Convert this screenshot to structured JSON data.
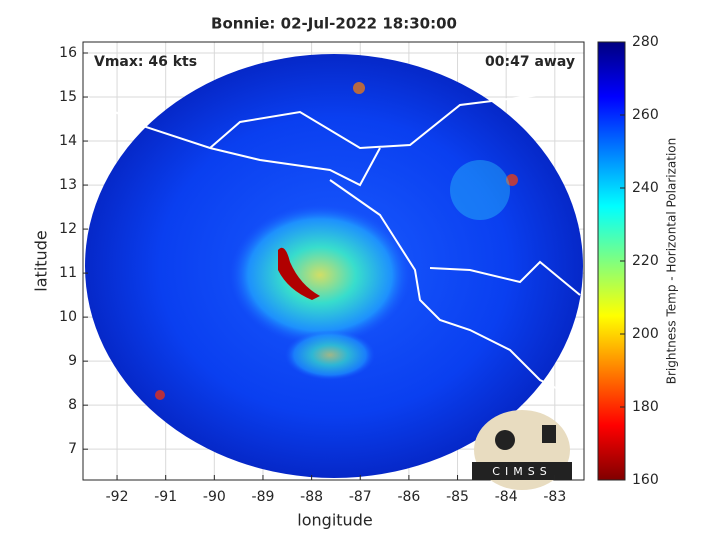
{
  "chart_data": {
    "type": "image",
    "title": "Bonnie: 02-Jul-2022 18:30:00",
    "xlabel": "longitude",
    "ylabel": "latitude",
    "xlim": [
      -92.7,
      -82.4
    ],
    "ylim": [
      6.3,
      16.25
    ],
    "xticks": [
      -92,
      -91,
      -90,
      -89,
      -88,
      -87,
      -86,
      -85,
      -84,
      -83
    ],
    "yticks": [
      7,
      8,
      9,
      10,
      11,
      12,
      13,
      14,
      15,
      16
    ],
    "grid": true,
    "annotations": [
      "Vmax: 46 kts",
      "00:47 away"
    ],
    "colormap": "jet",
    "colorbar": {
      "label": "Brightness Temp - Horizontal Polarization",
      "lim": [
        160,
        280
      ],
      "ticks": [
        160,
        180,
        200,
        220,
        240,
        260,
        280
      ]
    },
    "logo": "CIMSS"
  }
}
